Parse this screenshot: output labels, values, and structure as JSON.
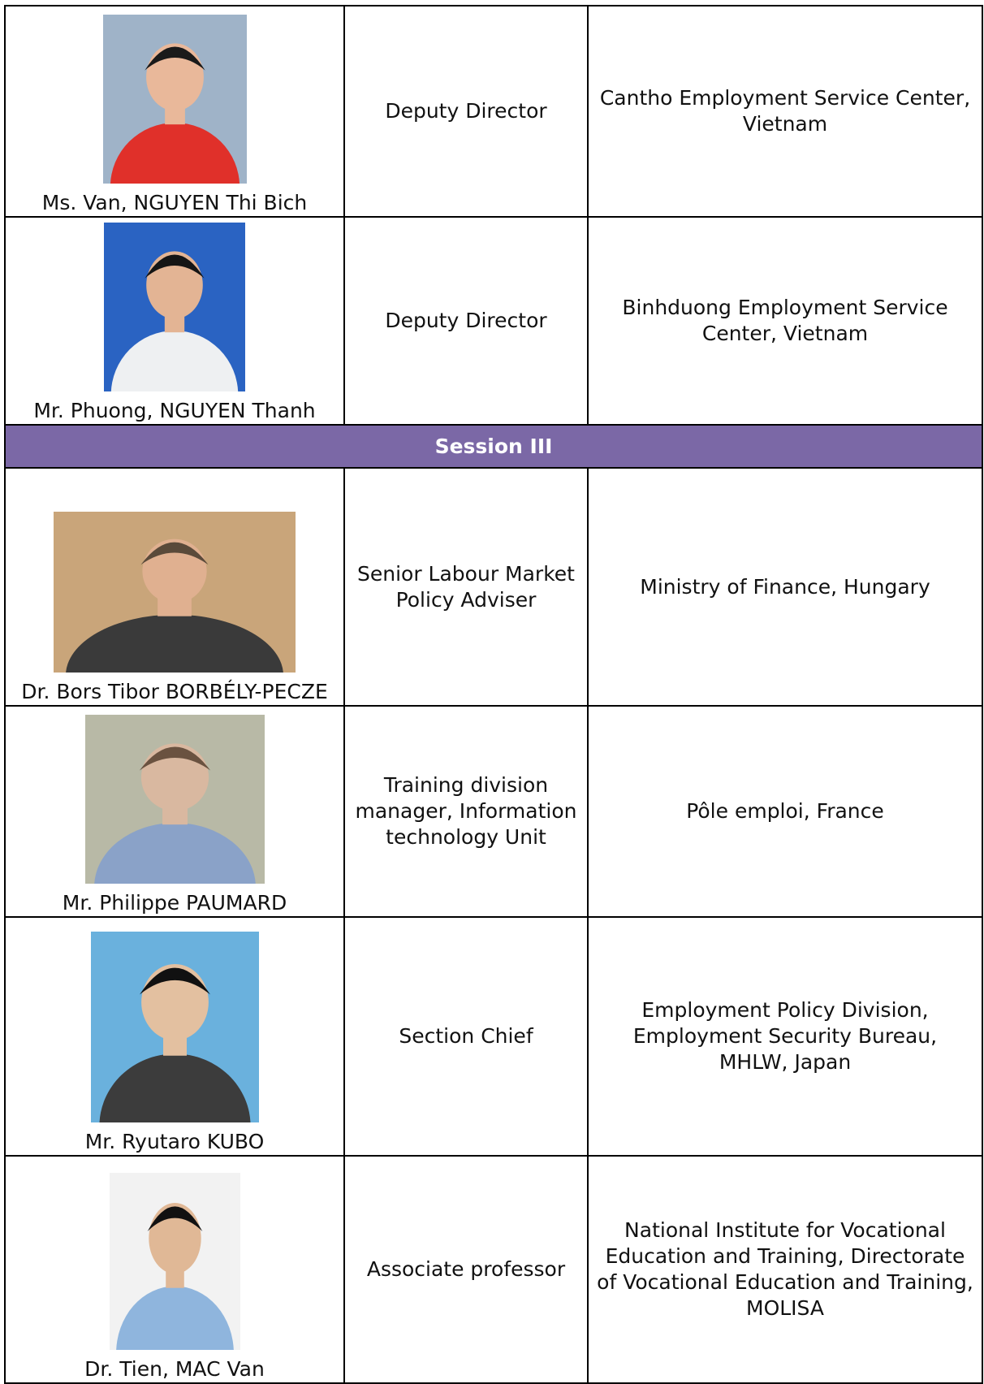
{
  "table": {
    "rows": [
      {
        "name": "Ms. Van, NGUYEN Thi Bich",
        "position": "Deputy Director",
        "organization": "Cantho Employment Service Center, Vietnam"
      },
      {
        "name": "Mr. Phuong, NGUYEN Thanh",
        "position": "Deputy Director",
        "organization": "Binhduong Employment Service Center, Vietnam"
      },
      {
        "session": "Session III"
      },
      {
        "name": "Dr. Bors Tibor BORBÉLY-PECZE",
        "position": "Senior Labour Market Policy Adviser",
        "organization": "Ministry of Finance, Hungary"
      },
      {
        "name": "Mr. Philippe PAUMARD",
        "position": "Training division manager, Information technology Unit",
        "organization": "Pôle emploi, France"
      },
      {
        "name": "Mr. Ryutaro KUBO",
        "position": "Section Chief",
        "organization": "Employment Policy Division, Employment Security Bureau, MHLW, Japan"
      },
      {
        "name": "Dr. Tien, MAC Van",
        "position": "Associate professor",
        "organization": "National Institute for Vocational Education and Training, Directorate of Vocational Education and Training, MOLISA"
      }
    ]
  }
}
